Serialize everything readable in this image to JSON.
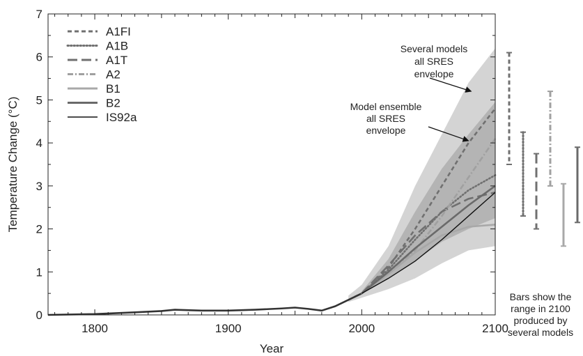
{
  "chart_data": {
    "type": "line",
    "xlabel": "Year",
    "ylabel": "Temperature Change (°C)",
    "xlim": [
      1765,
      2100
    ],
    "ylim": [
      0,
      7
    ],
    "xticks": [
      1800,
      1900,
      2000,
      2100
    ],
    "yticks": [
      0,
      1,
      2,
      3,
      4,
      5,
      6,
      7
    ],
    "legend_position": "top-left",
    "series": [
      {
        "name": "A1FI",
        "style": "dashed-short",
        "color": "#707070",
        "x": [
          2000,
          2020,
          2040,
          2060,
          2080,
          2100
        ],
        "y": [
          0.5,
          1.1,
          2.0,
          3.0,
          4.0,
          4.8
        ]
      },
      {
        "name": "A1B",
        "style": "dotted",
        "color": "#707070",
        "x": [
          2000,
          2020,
          2040,
          2060,
          2080,
          2100
        ],
        "y": [
          0.5,
          1.05,
          1.75,
          2.4,
          2.9,
          3.25
        ]
      },
      {
        "name": "A1T",
        "style": "dashed-long",
        "color": "#707070",
        "x": [
          2000,
          2020,
          2040,
          2060,
          2080,
          2100
        ],
        "y": [
          0.5,
          1.15,
          1.85,
          2.4,
          2.7,
          2.85
        ]
      },
      {
        "name": "A2",
        "style": "dash-dot",
        "color": "#a0a0a0",
        "x": [
          2000,
          2020,
          2040,
          2060,
          2080,
          2100
        ],
        "y": [
          0.5,
          0.95,
          1.5,
          2.3,
          3.2,
          4.1
        ]
      },
      {
        "name": "B1",
        "style": "solid",
        "color": "#a8a8a8",
        "x": [
          2000,
          2020,
          2040,
          2060,
          2080,
          2100
        ],
        "y": [
          0.5,
          0.95,
          1.45,
          1.85,
          2.05,
          2.1
        ]
      },
      {
        "name": "B2",
        "style": "solid",
        "color": "#6a6a6a",
        "x": [
          2000,
          2020,
          2040,
          2060,
          2080,
          2100
        ],
        "y": [
          0.5,
          1.0,
          1.55,
          2.05,
          2.55,
          3.0
        ]
      },
      {
        "name": "IS92a",
        "style": "solid-thin",
        "color": "#111111",
        "x": [
          2000,
          2020,
          2040,
          2060,
          2080,
          2100
        ],
        "y": [
          0.5,
          0.85,
          1.25,
          1.75,
          2.3,
          2.85
        ]
      }
    ],
    "historical": {
      "x": [
        1765,
        1800,
        1830,
        1850,
        1860,
        1880,
        1900,
        1920,
        1940,
        1950,
        1960,
        1970,
        1980,
        1990,
        2000
      ],
      "y": [
        0.0,
        0.02,
        0.06,
        0.09,
        0.12,
        0.1,
        0.1,
        0.12,
        0.15,
        0.17,
        0.14,
        0.1,
        0.2,
        0.35,
        0.5
      ]
    },
    "bands": [
      {
        "name": "Several models all SRES envelope",
        "color": "#d4d4d4",
        "x": [
          1990,
          2000,
          2020,
          2040,
          2060,
          2080,
          2100
        ],
        "lower": [
          0.3,
          0.4,
          0.6,
          0.85,
          1.2,
          1.5,
          1.6
        ],
        "upper": [
          0.45,
          0.7,
          1.6,
          3.0,
          4.2,
          5.4,
          6.2
        ]
      },
      {
        "name": "Model ensemble all SRES envelope",
        "color": "#b4b4b4",
        "x": [
          2000,
          2020,
          2040,
          2060,
          2080,
          2100
        ],
        "lower": [
          0.5,
          0.85,
          1.25,
          1.7,
          2.0,
          2.25
        ],
        "upper": [
          0.55,
          1.3,
          2.4,
          3.4,
          4.2,
          4.95
        ]
      }
    ],
    "range_bars": [
      {
        "name": "A1FI",
        "style": "dashed-short",
        "color": "#707070",
        "low": 3.5,
        "high": 6.1
      },
      {
        "name": "A1B",
        "style": "dotted",
        "color": "#707070",
        "low": 2.3,
        "high": 4.25
      },
      {
        "name": "A1T",
        "style": "dashed-long",
        "color": "#707070",
        "low": 2.0,
        "high": 3.75
      },
      {
        "name": "A2",
        "style": "dash-dot",
        "color": "#a0a0a0",
        "low": 3.0,
        "high": 5.2
      },
      {
        "name": "B1",
        "style": "solid",
        "color": "#a8a8a8",
        "low": 1.6,
        "high": 3.05
      },
      {
        "name": "B2",
        "style": "solid",
        "color": "#6a6a6a",
        "low": 2.15,
        "high": 3.9
      }
    ],
    "annotations": [
      {
        "lines": [
          "Several models",
          "all SRES",
          "envelope"
        ],
        "target_x": 2082,
        "target_y": 5.2
      },
      {
        "lines": [
          "Model ensemble",
          "all SRES",
          "envelope"
        ],
        "target_x": 2080,
        "target_y": 4.05
      },
      {
        "lines": [
          "Bars show the",
          "range in 2100",
          "produced by",
          "several models"
        ]
      }
    ]
  }
}
